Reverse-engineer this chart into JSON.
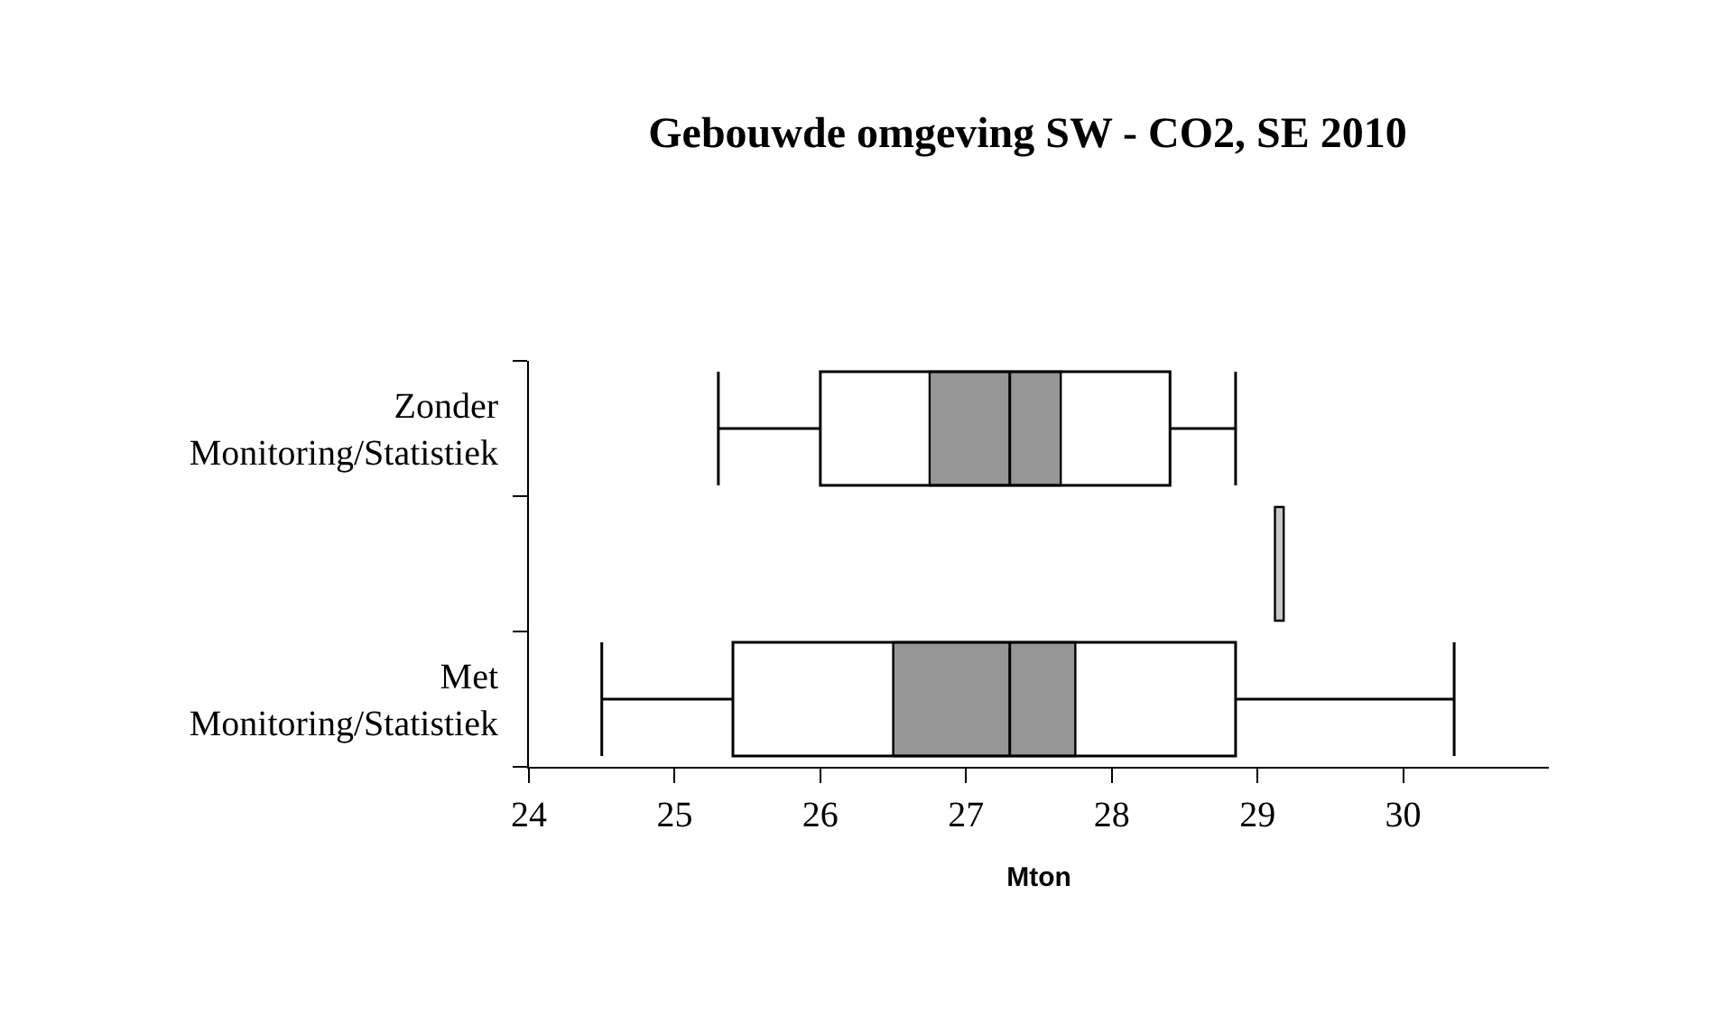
{
  "chart_data": {
    "type": "box",
    "title": "Gebouwde omgeving SW - CO2, SE 2010",
    "xlabel": "Mton",
    "orientation": "horizontal",
    "categories": [
      "Zonder Monitoring/Statistiek",
      null,
      "Met Monitoring/Statistiek"
    ],
    "series": [
      {
        "type": "bar",
        "color": "#969696",
        "base": [
          26.75,
          null,
          26.5
        ],
        "values": [
          0.9,
          null,
          1.25
        ]
      },
      {
        "color": "#000000",
        "boxes": [
          {
            "low": 25.3,
            "q1": 26,
            "median": 27.3,
            "q3": 28.4,
            "high": 28.85
          },
          null,
          {
            "low": 24.5,
            "q1": 25.4,
            "median": 27.3,
            "q3": 28.85,
            "high": 30.35
          }
        ]
      },
      {
        "type": "bar",
        "color": "#c8c8c8",
        "base": [
          null,
          29.12,
          null
        ],
        "values": [
          null,
          0.06,
          null
        ]
      }
    ],
    "xlim": [
      24,
      31
    ],
    "xticks": [
      24,
      25,
      26,
      27,
      28,
      29,
      30
    ],
    "grid": false
  }
}
